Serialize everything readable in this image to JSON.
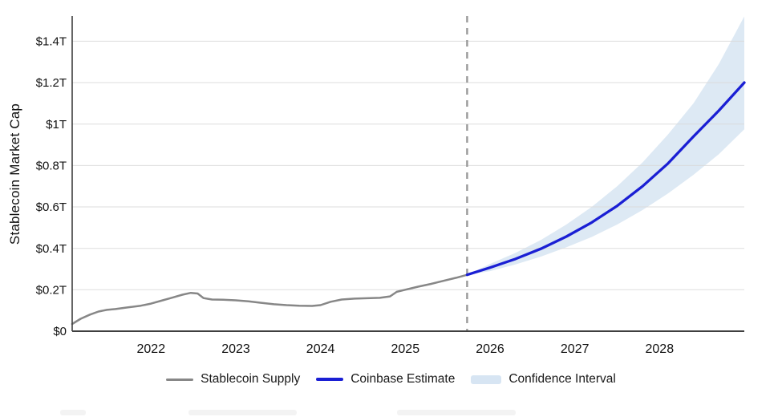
{
  "page": {
    "background": "#ffffff"
  },
  "chart": {
    "y_axis_title": "Stablecoin Market Cap",
    "legend": [
      {
        "id": "stablecoin-supply",
        "label": "Stablecoin Supply",
        "swatch": "line",
        "color": "#878787"
      },
      {
        "id": "coinbase-estimate",
        "label": "Coinbase Estimate",
        "swatch": "line-thick",
        "color": "#1a1fd4"
      },
      {
        "id": "confidence-interval",
        "label": "Confidence Interval",
        "swatch": "band",
        "color": "#d7e5f3"
      }
    ]
  },
  "chart_data": {
    "type": "line",
    "title": "",
    "xlabel": "",
    "ylabel": "Stablecoin Market Cap",
    "x_range": [
      2021.07,
      2029.0
    ],
    "ylim": [
      0,
      1.5
    ],
    "grid": true,
    "legend_position": "bottom-center",
    "y_ticks": [
      {
        "v": 0,
        "label": "$0"
      },
      {
        "v": 0.2,
        "label": "$0.2T"
      },
      {
        "v": 0.4,
        "label": "$0.4T"
      },
      {
        "v": 0.6,
        "label": "$0.6T"
      },
      {
        "v": 0.8,
        "label": "$0.8T"
      },
      {
        "v": 1.0,
        "label": "$1T"
      },
      {
        "v": 1.2,
        "label": "$1.2T"
      },
      {
        "v": 1.4,
        "label": "$1.4T"
      }
    ],
    "x_ticks": [
      {
        "v": 2022,
        "label": "2022"
      },
      {
        "v": 2023,
        "label": "2023"
      },
      {
        "v": 2024,
        "label": "2024"
      },
      {
        "v": 2025,
        "label": "2025"
      },
      {
        "v": 2026,
        "label": "2026"
      },
      {
        "v": 2027,
        "label": "2027"
      },
      {
        "v": 2028,
        "label": "2028"
      }
    ],
    "forecast_divider_x": 2025.73,
    "series": [
      {
        "name": "Stablecoin Supply",
        "type": "line",
        "color": "#878787",
        "width": 2.5,
        "points": [
          [
            2021.07,
            0.035
          ],
          [
            2021.17,
            0.06
          ],
          [
            2021.28,
            0.08
          ],
          [
            2021.38,
            0.095
          ],
          [
            2021.48,
            0.103
          ],
          [
            2021.58,
            0.107
          ],
          [
            2021.73,
            0.115
          ],
          [
            2021.88,
            0.123
          ],
          [
            2022.0,
            0.133
          ],
          [
            2022.12,
            0.147
          ],
          [
            2022.25,
            0.162
          ],
          [
            2022.37,
            0.176
          ],
          [
            2022.47,
            0.185
          ],
          [
            2022.55,
            0.182
          ],
          [
            2022.62,
            0.16
          ],
          [
            2022.72,
            0.153
          ],
          [
            2022.85,
            0.152
          ],
          [
            2023.0,
            0.149
          ],
          [
            2023.15,
            0.144
          ],
          [
            2023.3,
            0.137
          ],
          [
            2023.45,
            0.13
          ],
          [
            2023.6,
            0.126
          ],
          [
            2023.75,
            0.123
          ],
          [
            2023.9,
            0.122
          ],
          [
            2024.0,
            0.126
          ],
          [
            2024.12,
            0.142
          ],
          [
            2024.25,
            0.153
          ],
          [
            2024.4,
            0.157
          ],
          [
            2024.55,
            0.159
          ],
          [
            2024.7,
            0.161
          ],
          [
            2024.82,
            0.168
          ],
          [
            2024.9,
            0.19
          ],
          [
            2025.0,
            0.2
          ],
          [
            2025.15,
            0.215
          ],
          [
            2025.3,
            0.228
          ],
          [
            2025.45,
            0.243
          ],
          [
            2025.6,
            0.258
          ],
          [
            2025.73,
            0.272
          ]
        ]
      },
      {
        "name": "Coinbase Estimate",
        "type": "line",
        "color": "#1a1fd4",
        "width": 3.3,
        "points": [
          [
            2025.73,
            0.272
          ],
          [
            2026.0,
            0.307
          ],
          [
            2026.3,
            0.349
          ],
          [
            2026.6,
            0.398
          ],
          [
            2026.9,
            0.457
          ],
          [
            2027.2,
            0.525
          ],
          [
            2027.5,
            0.605
          ],
          [
            2027.8,
            0.7
          ],
          [
            2028.1,
            0.81
          ],
          [
            2028.4,
            0.94
          ],
          [
            2028.7,
            1.065
          ],
          [
            2029.0,
            1.2
          ]
        ]
      },
      {
        "name": "Confidence Interval",
        "type": "band",
        "color": "#dde9f4",
        "points": [
          [
            2025.73,
            0.272,
            0.272
          ],
          [
            2026.0,
            0.29,
            0.325
          ],
          [
            2026.3,
            0.322,
            0.378
          ],
          [
            2026.6,
            0.36,
            0.44
          ],
          [
            2026.9,
            0.405,
            0.515
          ],
          [
            2027.2,
            0.455,
            0.6
          ],
          [
            2027.5,
            0.515,
            0.7
          ],
          [
            2027.8,
            0.585,
            0.815
          ],
          [
            2028.1,
            0.665,
            0.95
          ],
          [
            2028.4,
            0.755,
            1.1
          ],
          [
            2028.7,
            0.855,
            1.29
          ],
          [
            2029.0,
            0.975,
            1.52
          ]
        ]
      }
    ]
  },
  "colors": {
    "grid": "#d9d9d9",
    "axis": "#3f3f3f",
    "divider": "#999999",
    "tick_text": "#111111"
  }
}
